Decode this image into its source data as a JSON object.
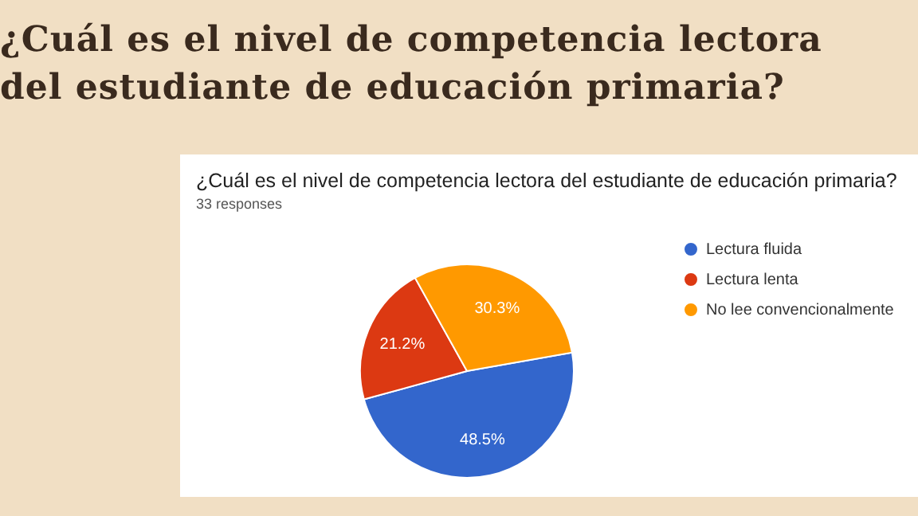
{
  "chart_data": {
    "type": "pie",
    "title": "¿Cuál es el nivel de competencia lectora del estudiante de educación primaria?",
    "subtitle": "¿Cuál es el nivel de competencia lectora del estudiante de educación primaria?",
    "annotations": [
      "33 responses"
    ],
    "categories": [
      "Lectura fluida",
      "Lectura lenta",
      "No lee convencionalmente"
    ],
    "values": [
      48.5,
      21.2,
      30.3
    ],
    "colors": [
      "#3366cc",
      "#dc3912",
      "#ff9900"
    ],
    "value_labels": [
      "48.5%",
      "21.2%",
      "30.3%"
    ],
    "legend": "right"
  }
}
